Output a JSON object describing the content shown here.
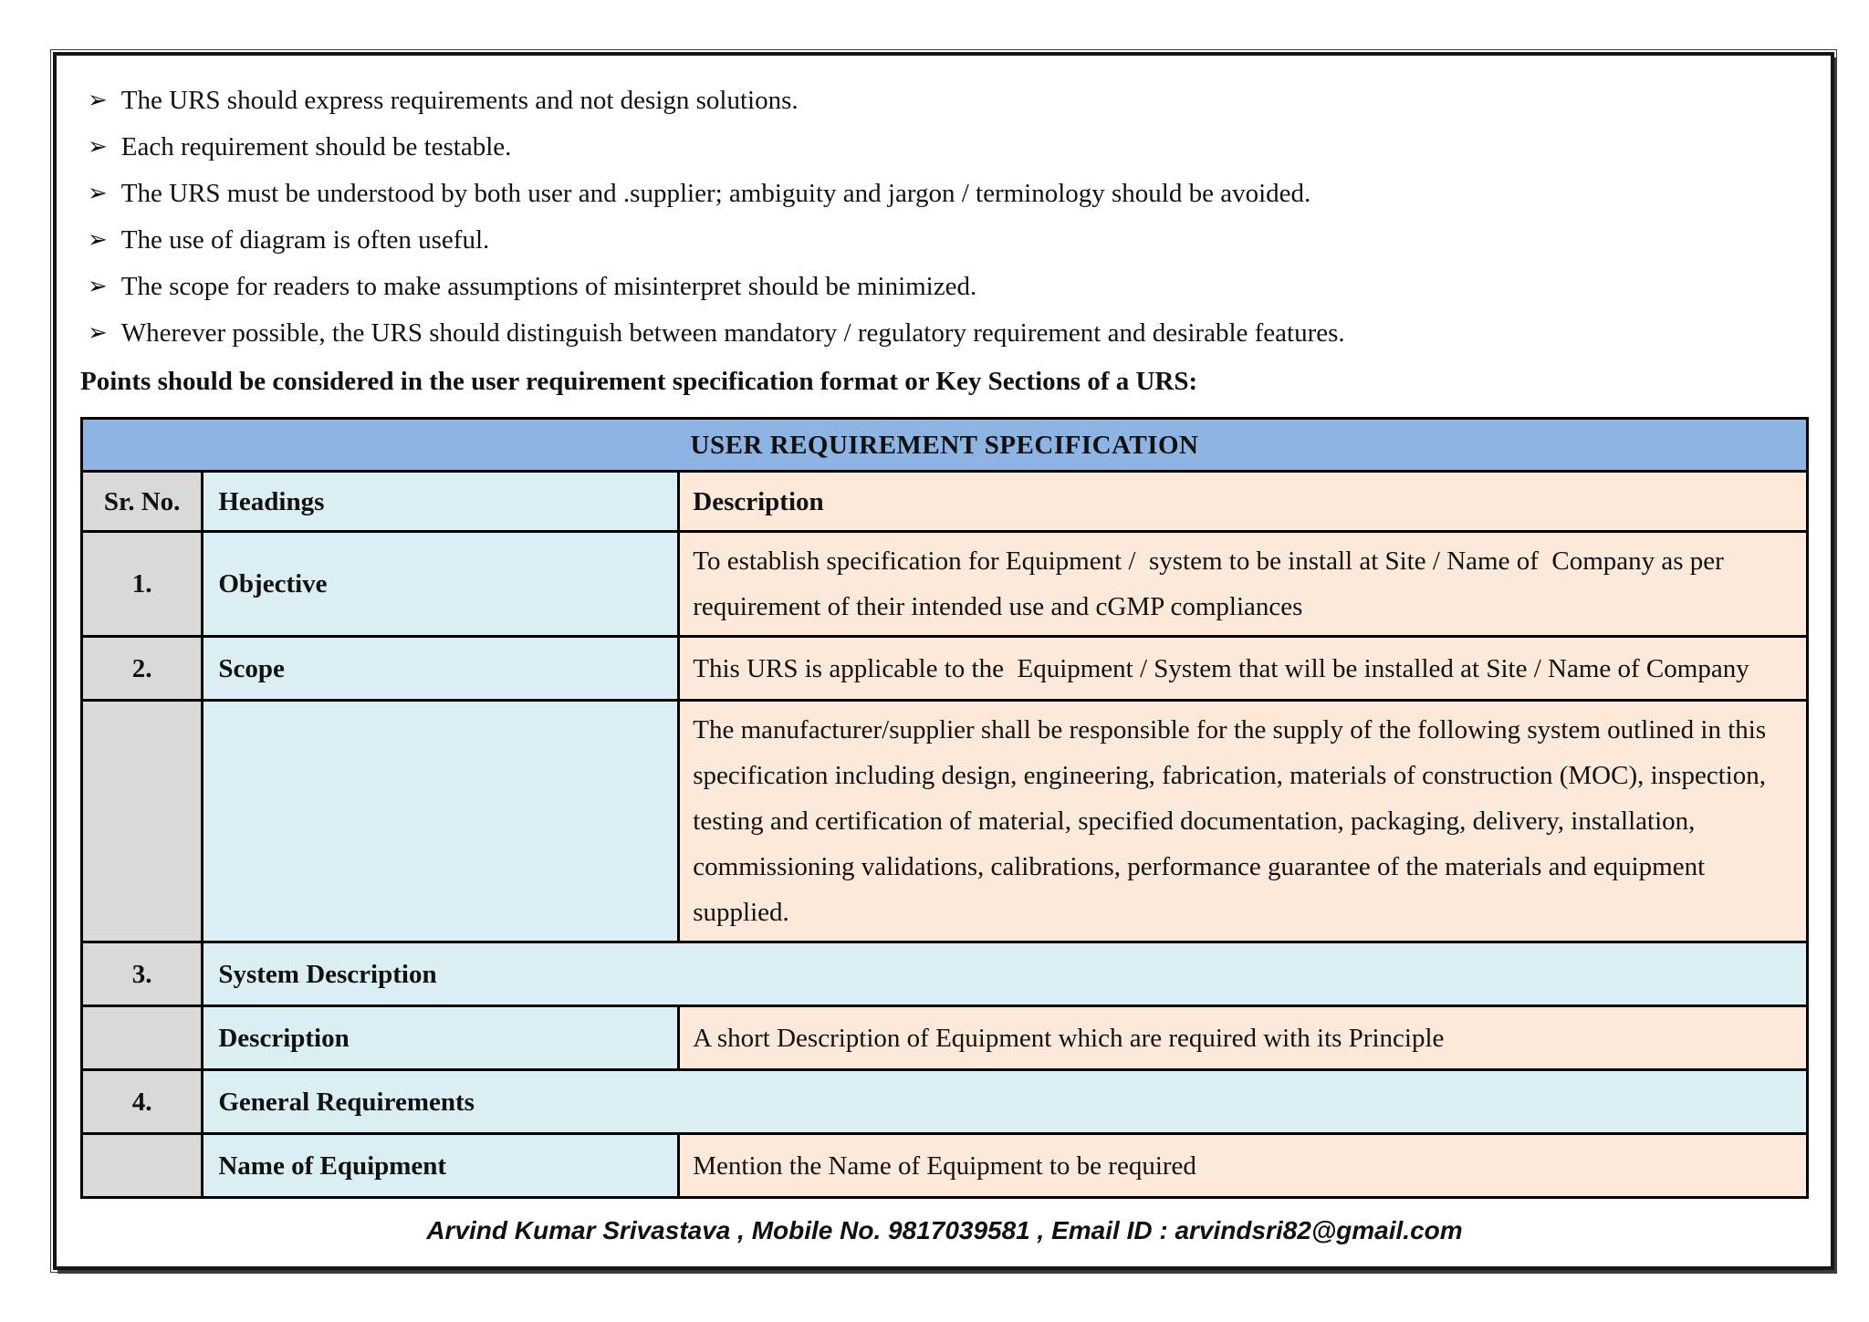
{
  "page": {
    "bullets": [
      "The URS should express requirements and not design solutions.",
      "Each requirement should be testable.",
      "The URS must be understood by both user and .supplier; ambiguity and jargon / terminology should be avoided.",
      "The use of diagram is often useful.",
      "The scope for readers to make assumptions of misinterpret should be minimized.",
      "Wherever possible, the URS should distinguish between mandatory / regulatory requirement and desirable features."
    ],
    "intro_bold": "Points should be considered in the user requirement specification format or Key Sections of a URS:",
    "footer": "Arvind Kumar Srivastava , Mobile No. 9817039581 , Email ID : arvindsri82@gmail.com"
  },
  "icons": {
    "bullet_arrow": "➢"
  },
  "table": {
    "title": "USER REQUIREMENT SPECIFICATION",
    "columns": [
      "Sr. No.",
      "Headings",
      "Description"
    ],
    "rows": [
      {
        "type": "normal",
        "sr": "1.",
        "heading": "Objective",
        "description": "To establish specification for Equipment /  system to be install at Site / Name of  Company as per requirement of their intended use and cGMP compliances"
      },
      {
        "type": "normal",
        "sr": "2.",
        "heading": "Scope",
        "description": "This URS is applicable to the  Equipment / System that will be installed at Site / Name of Company"
      },
      {
        "type": "normal",
        "sr": "",
        "heading": "",
        "description": "The manufacturer/supplier shall be responsible for the supply of the following system outlined in this specification including design, engineering, fabrication, materials of construction (MOC), inspection, testing and certification of material, specified documentation, packaging, delivery, installation, commissioning validations, calibrations, performance guarantee of the materials and equipment supplied."
      },
      {
        "type": "section",
        "sr": "3.",
        "heading": "System Description",
        "description": ""
      },
      {
        "type": "normal",
        "sr": "",
        "heading": "Description",
        "description": "A short Description of Equipment which are required with its Principle"
      },
      {
        "type": "section",
        "sr": "4.",
        "heading": "General Requirements",
        "description": ""
      },
      {
        "type": "normal",
        "sr": "",
        "heading": "Name of Equipment",
        "description": "Mention the Name of Equipment to be required"
      }
    ]
  },
  "colors": {
    "title_bg": "#8eb4e3",
    "sr_bg": "#d9d9d9",
    "heading_bg": "#daeef3",
    "desc_bg": "#fde9d9",
    "border": "#000000"
  }
}
